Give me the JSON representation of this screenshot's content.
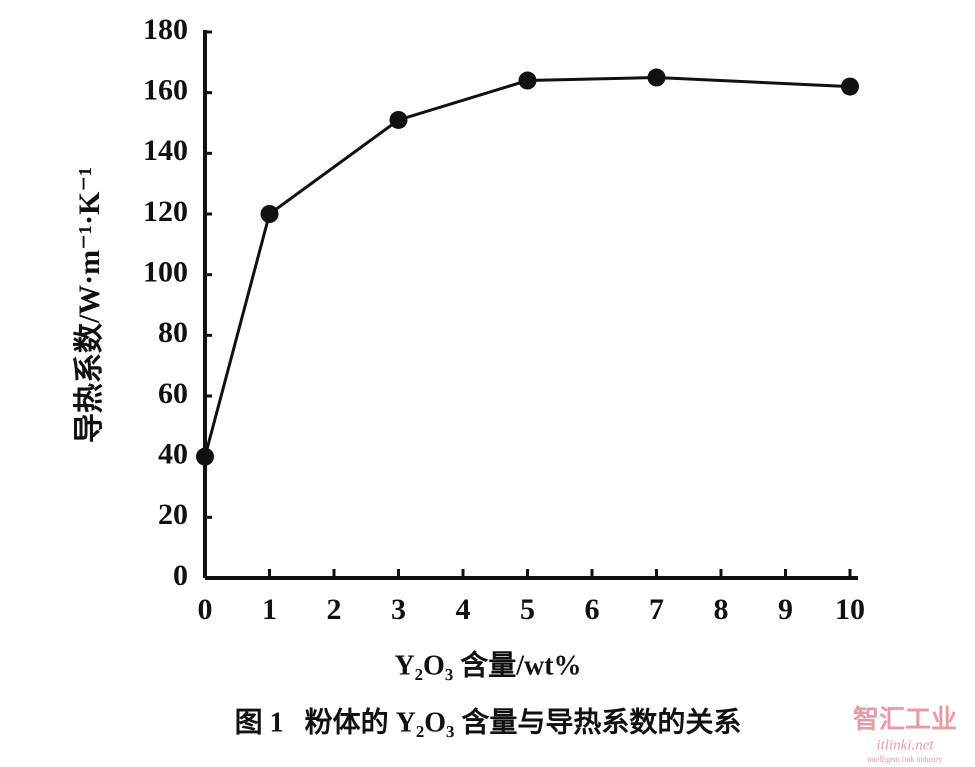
{
  "chart_data": {
    "type": "line",
    "caption": "图 1   粉体的 Y₂O₃ 含量与导热系数的关系",
    "x_label": "Y₂O₃ 含量/wt%",
    "y_label": "导热系数/W·m⁻¹·K⁻¹",
    "x": [
      0,
      1,
      3,
      5,
      7,
      10
    ],
    "values": [
      40,
      120,
      151,
      164,
      165,
      162
    ],
    "color": "#111111",
    "xlim": [
      0,
      10
    ],
    "xticks": [
      0,
      1,
      2,
      3,
      4,
      5,
      6,
      7,
      8,
      9,
      10
    ],
    "ylim": [
      0,
      180
    ],
    "yticks": [
      0,
      20,
      40,
      60,
      80,
      100,
      120,
      140,
      160,
      180
    ],
    "grid": false,
    "watermark": "智汇工业",
    "watermark_site": "itlinki.net",
    "watermark_tagline": "intelligent link industry"
  }
}
